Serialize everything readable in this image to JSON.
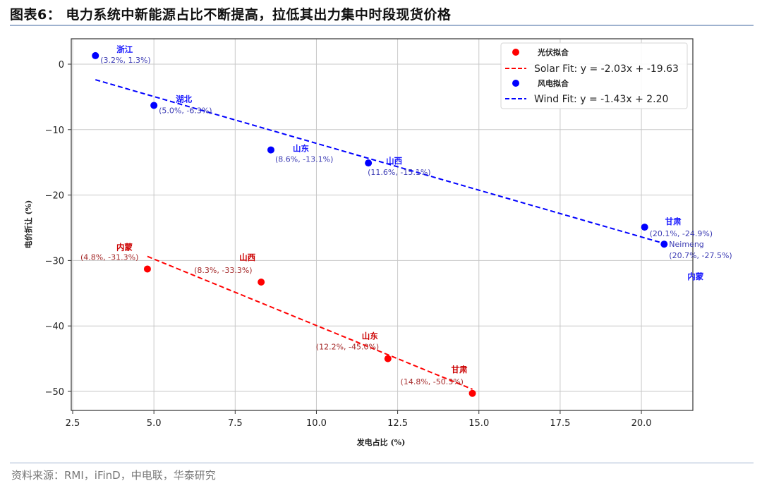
{
  "header": {
    "title": "图表6： 电力系统中新能源占比不断提高，拉低其出力集中时段现货价格"
  },
  "footer": {
    "source": "资料来源：RMI，iFinD，中电联，华泰研究"
  },
  "chart_data": {
    "type": "scatter",
    "title": "图表6： 电力系统中新能源占比不断提高，拉低其出力集中时段现货价格",
    "xlabel": "发电占比 (%)",
    "ylabel": "电价折让 (%)",
    "xlim": [
      2.45,
      21.6
    ],
    "ylim": [
      -53,
      3.9
    ],
    "xticks": [
      "2.5",
      "5.0",
      "7.5",
      "10.0",
      "12.5",
      "15.0",
      "17.5",
      "20.0"
    ],
    "yticks": [
      "0",
      "−10",
      "−20",
      "−30",
      "−40",
      "−50"
    ],
    "grid": true,
    "legend_position": "upper right",
    "legend": [
      {
        "label": "光伏拟合",
        "marker": "dot",
        "color": "#ff0000"
      },
      {
        "label": "Solar Fit: y = -2.03x + -19.63",
        "marker": "dashed-line",
        "color": "#ff0000"
      },
      {
        "label": "风电拟合",
        "marker": "dot",
        "color": "#0000ff"
      },
      {
        "label": "Wind Fit: y = -1.43x + 2.20",
        "marker": "dashed-line",
        "color": "#0000ff"
      }
    ],
    "series": [
      {
        "name": "光伏拟合",
        "color": "#ff0000",
        "annotation_color": "#a52a2a",
        "fit": {
          "label": "Solar Fit: y = -2.03x + -19.63",
          "slope": -2.03,
          "intercept": -19.63,
          "x_range": [
            4.8,
            14.8
          ]
        },
        "points": [
          {
            "region": "内蒙",
            "x": 4.8,
            "y": -31.3,
            "label": "(4.8%, -31.3%)"
          },
          {
            "region": "山西",
            "x": 8.3,
            "y": -33.3,
            "label": "(8.3%, -33.3%)"
          },
          {
            "region": "山东",
            "x": 12.2,
            "y": -45.0,
            "label": "(12.2%, -45.0%)"
          },
          {
            "region": "甘肃",
            "x": 14.8,
            "y": -50.3,
            "label": "(14.8%, -50.3%)"
          }
        ]
      },
      {
        "name": "风电拟合",
        "color": "#0000ff",
        "annotation_color": "#3c3cb4",
        "fit": {
          "label": "Wind Fit: y = -1.43x + 2.20",
          "slope": -1.43,
          "intercept": 2.2,
          "x_range": [
            3.2,
            20.7
          ]
        },
        "points": [
          {
            "region": "浙江",
            "x": 3.2,
            "y": 1.3,
            "label": "(3.2%, 1.3%)"
          },
          {
            "region": "湖北",
            "x": 5.0,
            "y": -6.3,
            "label": "(5.0%, -6.3%)"
          },
          {
            "region": "山东",
            "x": 8.6,
            "y": -13.1,
            "label": "(8.6%, -13.1%)"
          },
          {
            "region": "山西",
            "x": 11.6,
            "y": -15.1,
            "label": "(11.6%, -15.1%)"
          },
          {
            "region": "甘肃",
            "x": 20.1,
            "y": -24.9,
            "label": "(20.1%, -24.9%)"
          },
          {
            "region": "内蒙",
            "x": 20.7,
            "y": -27.5,
            "label": "(20.7%, -27.5%)",
            "extra_label": "Neimeng"
          }
        ]
      }
    ]
  }
}
